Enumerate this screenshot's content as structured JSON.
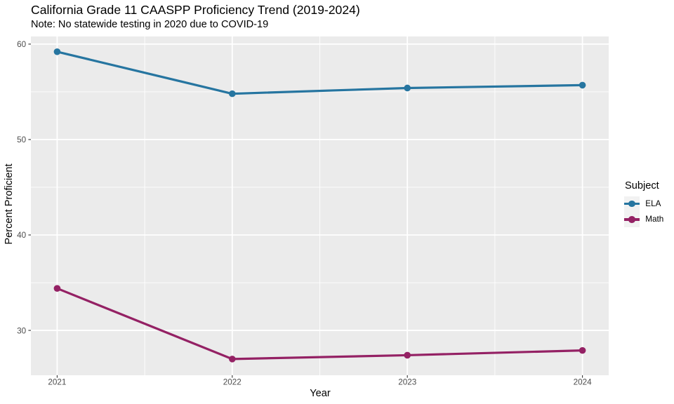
{
  "title": "California Grade 11 CAASPP Proficiency Trend (2019-2024)",
  "subtitle": "Note: No statewide testing in 2020 due to COVID-19",
  "chart_data": {
    "type": "line",
    "x": [
      2021,
      2022,
      2023,
      2024
    ],
    "series": [
      {
        "name": "ELA",
        "values": [
          59.2,
          54.8,
          55.4,
          55.7
        ],
        "color": "#2675A0"
      },
      {
        "name": "Math",
        "values": [
          34.4,
          27.0,
          27.4,
          27.9
        ],
        "color": "#942164"
      }
    ],
    "title": "California Grade 11 CAASPP Proficiency Trend (2019-2024)",
    "subtitle": "Note: No statewide testing in 2020 due to COVID-19",
    "xlabel": "Year",
    "ylabel": "Percent Proficient",
    "x_ticks": [
      2021,
      2022,
      2023,
      2024
    ],
    "y_ticks": [
      30,
      40,
      50,
      60
    ],
    "y_minor_ticks": [
      35,
      45,
      55
    ],
    "x_minor_ticks": [
      2021.5,
      2022.5,
      2023.5
    ],
    "ylim": [
      25.3,
      60.8
    ],
    "xlim": [
      2020.85,
      2024.15
    ],
    "grid": true,
    "legend_position": "right"
  },
  "legend": {
    "title": "Subject",
    "entries": [
      {
        "label": "ELA",
        "color": "#2675A0"
      },
      {
        "label": "Math",
        "color": "#942164"
      }
    ]
  },
  "theme": {
    "panel_background": "#EBEBEB",
    "grid_color": "#FFFFFF",
    "tick_label_color": "#4D4D4D",
    "tick_mark_color": "#333333",
    "legend_key_background": "#F2F2F2",
    "text_color": "#000000",
    "background": "#FFFFFF"
  }
}
